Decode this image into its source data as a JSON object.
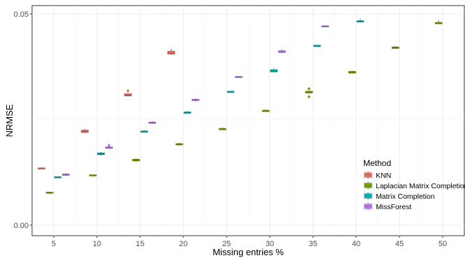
{
  "chart_data": {
    "type": "boxplot",
    "xlabel": "Missing entries %",
    "ylabel": "NRMSE",
    "categories": [
      5,
      10,
      15,
      20,
      25,
      30,
      35,
      40,
      45,
      50
    ],
    "ylim": [
      -0.0025,
      0.052
    ],
    "y_ticks": [
      0.0,
      0.05
    ],
    "y_tick_labels": [
      "0.00",
      "0.05"
    ],
    "grid": true,
    "legend": {
      "title": "Method",
      "position": "bottom-right"
    },
    "series": [
      {
        "name": "KNN",
        "color": "#F8766D",
        "boxes": [
          {
            "x": 5,
            "min": 0.01325,
            "q1": 0.01335,
            "median": 0.0134,
            "q3": 0.01355,
            "max": 0.0137,
            "outliers": []
          },
          {
            "x": 10,
            "min": 0.0218,
            "q1": 0.02195,
            "median": 0.0222,
            "q3": 0.0225,
            "max": 0.0228,
            "outliers": []
          },
          {
            "x": 15,
            "min": 0.0305,
            "q1": 0.0306,
            "median": 0.0308,
            "q3": 0.0311,
            "max": 0.0313,
            "outliers": [
              0.0318
            ]
          },
          {
            "x": 20,
            "min": 0.0403,
            "q1": 0.0405,
            "median": 0.0408,
            "q3": 0.0412,
            "max": 0.0417,
            "outliers": []
          }
        ]
      },
      {
        "name": "Laplacian Matrix Completion",
        "color": "#7CAE00",
        "boxes": [
          {
            "x": 5,
            "min": 0.0073,
            "q1": 0.0076,
            "median": 0.0077,
            "q3": 0.0078,
            "max": 0.0079,
            "outliers": []
          },
          {
            "x": 10,
            "min": 0.0117,
            "q1": 0.0118,
            "median": 0.01185,
            "q3": 0.0119,
            "max": 0.012,
            "outliers": []
          },
          {
            "x": 15,
            "min": 0.015,
            "q1": 0.0152,
            "median": 0.0154,
            "q3": 0.0156,
            "max": 0.0158,
            "outliers": []
          },
          {
            "x": 20,
            "min": 0.0188,
            "q1": 0.019,
            "median": 0.0191,
            "q3": 0.0193,
            "max": 0.0195,
            "outliers": []
          },
          {
            "x": 25,
            "min": 0.0225,
            "q1": 0.0226,
            "median": 0.0227,
            "q3": 0.0229,
            "max": 0.0231,
            "outliers": []
          },
          {
            "x": 30,
            "min": 0.0268,
            "q1": 0.0269,
            "median": 0.027,
            "q3": 0.0272,
            "max": 0.0274,
            "outliers": []
          },
          {
            "x": 35,
            "min": 0.0312,
            "q1": 0.0313,
            "median": 0.0315,
            "q3": 0.0317,
            "max": 0.0319,
            "outliers": [
              0.0304,
              0.0323
            ]
          },
          {
            "x": 40,
            "min": 0.0359,
            "q1": 0.036,
            "median": 0.0362,
            "q3": 0.0364,
            "max": 0.0366,
            "outliers": []
          },
          {
            "x": 45,
            "min": 0.0418,
            "q1": 0.04185,
            "median": 0.042,
            "q3": 0.0422,
            "max": 0.0424,
            "outliers": []
          },
          {
            "x": 50,
            "min": 0.0476,
            "q1": 0.0477,
            "median": 0.0478,
            "q3": 0.048,
            "max": 0.0485,
            "outliers": []
          }
        ]
      },
      {
        "name": "Matrix Completion",
        "color": "#00BFC4",
        "boxes": [
          {
            "x": 5,
            "min": 0.0113,
            "q1": 0.01135,
            "median": 0.0114,
            "q3": 0.01145,
            "max": 0.0115,
            "outliers": []
          },
          {
            "x": 10,
            "min": 0.0165,
            "q1": 0.0167,
            "median": 0.0169,
            "q3": 0.0171,
            "max": 0.0173,
            "outliers": []
          },
          {
            "x": 15,
            "min": 0.0219,
            "q1": 0.022,
            "median": 0.0221,
            "q3": 0.0223,
            "max": 0.0225,
            "outliers": []
          },
          {
            "x": 20,
            "min": 0.0264,
            "q1": 0.0265,
            "median": 0.0266,
            "q3": 0.0268,
            "max": 0.027,
            "outliers": []
          },
          {
            "x": 25,
            "min": 0.0314,
            "q1": 0.0315,
            "median": 0.0316,
            "q3": 0.0317,
            "max": 0.0318,
            "outliers": []
          },
          {
            "x": 30,
            "min": 0.0362,
            "q1": 0.0363,
            "median": 0.0365,
            "q3": 0.0368,
            "max": 0.0371,
            "outliers": []
          },
          {
            "x": 35,
            "min": 0.0422,
            "q1": 0.0423,
            "median": 0.0424,
            "q3": 0.0426,
            "max": 0.0427,
            "outliers": []
          },
          {
            "x": 40,
            "min": 0.048,
            "q1": 0.0481,
            "median": 0.0482,
            "q3": 0.0484,
            "max": 0.0488,
            "outliers": []
          }
        ]
      },
      {
        "name": "MissForest",
        "color": "#C77CFF",
        "boxes": [
          {
            "x": 5,
            "min": 0.0117,
            "q1": 0.0118,
            "median": 0.0119,
            "q3": 0.0121,
            "max": 0.0123,
            "outliers": []
          },
          {
            "x": 10,
            "min": 0.0181,
            "q1": 0.0182,
            "median": 0.01835,
            "q3": 0.0185,
            "max": 0.0187,
            "outliers": [
              0.0189
            ]
          },
          {
            "x": 15,
            "min": 0.024,
            "q1": 0.0241,
            "median": 0.0242,
            "q3": 0.0244,
            "max": 0.0246,
            "outliers": []
          },
          {
            "x": 20,
            "min": 0.0294,
            "q1": 0.0295,
            "median": 0.0296,
            "q3": 0.0298,
            "max": 0.03,
            "outliers": []
          },
          {
            "x": 25,
            "min": 0.0349,
            "q1": 0.035,
            "median": 0.0351,
            "q3": 0.0352,
            "max": 0.0353,
            "outliers": []
          },
          {
            "x": 30,
            "min": 0.0408,
            "q1": 0.0409,
            "median": 0.041,
            "q3": 0.0413,
            "max": 0.0416,
            "outliers": []
          },
          {
            "x": 35,
            "min": 0.0469,
            "q1": 0.047,
            "median": 0.0471,
            "q3": 0.0472,
            "max": 0.0473,
            "outliers": []
          }
        ]
      }
    ]
  }
}
